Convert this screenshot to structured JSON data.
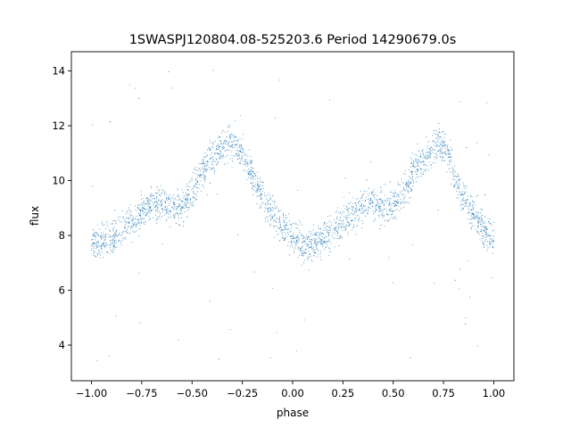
{
  "chart_data": {
    "type": "scatter",
    "title": "1SWASPJ120804.08-525203.6 Period 14290679.0s",
    "xlabel": "phase",
    "ylabel": "flux",
    "xlim": [
      -1.1,
      1.1
    ],
    "ylim": [
      2.7,
      14.7
    ],
    "xticks": [
      -1.0,
      -0.75,
      -0.5,
      -0.25,
      0.0,
      0.25,
      0.5,
      0.75,
      1.0
    ],
    "xtick_labels": [
      "−1.00",
      "−0.75",
      "−0.50",
      "−0.25",
      "0.00",
      "0.25",
      "0.50",
      "0.75",
      "1.00"
    ],
    "yticks": [
      4,
      6,
      8,
      10,
      12,
      14
    ],
    "ytick_labels": [
      "4",
      "6",
      "8",
      "10",
      "12",
      "14"
    ],
    "grid": false,
    "marker_color": "#1f77b4",
    "series": [
      {
        "x": [
          -1.0,
          -0.95,
          -0.9,
          -0.85,
          -0.8,
          -0.75,
          -0.7,
          -0.65,
          -0.6,
          -0.55,
          -0.5,
          -0.45,
          -0.4,
          -0.35,
          -0.3,
          -0.27,
          -0.25,
          -0.22,
          -0.2,
          -0.15,
          -0.1,
          -0.05,
          0.0,
          0.05,
          0.1,
          0.15,
          0.2,
          0.25,
          0.3,
          0.35,
          0.4,
          0.45,
          0.5,
          0.55,
          0.6,
          0.65,
          0.7,
          0.73,
          0.75,
          0.78,
          0.8,
          0.85,
          0.9,
          0.95,
          1.0
        ],
        "y": [
          7.8,
          7.7,
          7.9,
          8.2,
          8.5,
          8.8,
          9.1,
          9.2,
          9.0,
          9.0,
          9.6,
          10.3,
          10.8,
          11.2,
          11.3,
          11.2,
          11.0,
          10.6,
          10.2,
          9.4,
          8.8,
          8.3,
          7.9,
          7.6,
          7.7,
          7.9,
          8.2,
          8.5,
          8.8,
          9.1,
          9.2,
          9.0,
          9.0,
          9.6,
          10.3,
          10.8,
          11.2,
          11.3,
          11.2,
          11.0,
          10.2,
          9.4,
          8.8,
          8.2,
          7.8
        ]
      }
    ]
  }
}
